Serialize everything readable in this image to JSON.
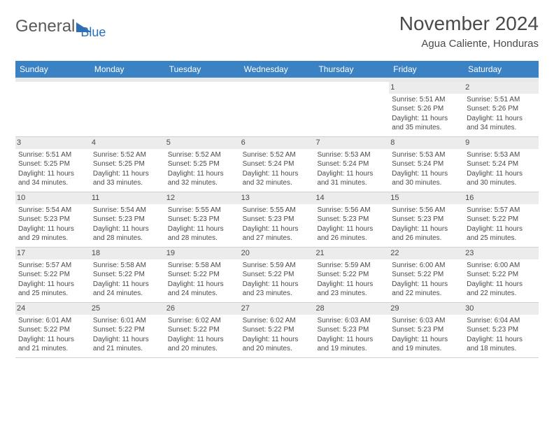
{
  "logo": {
    "part1": "General",
    "part2": "Blue"
  },
  "title": "November 2024",
  "location": "Agua Caliente, Honduras",
  "colors": {
    "header_bg": "#3b82c4",
    "header_text": "#ffffff",
    "daynum_bg": "#ececec",
    "cell_text": "#4a4a4a",
    "spacer_bg": "#e8e8e8"
  },
  "weekdays": [
    "Sunday",
    "Monday",
    "Tuesday",
    "Wednesday",
    "Thursday",
    "Friday",
    "Saturday"
  ],
  "weeks": [
    [
      {
        "n": "",
        "sr": "",
        "ss": "",
        "dl": ""
      },
      {
        "n": "",
        "sr": "",
        "ss": "",
        "dl": ""
      },
      {
        "n": "",
        "sr": "",
        "ss": "",
        "dl": ""
      },
      {
        "n": "",
        "sr": "",
        "ss": "",
        "dl": ""
      },
      {
        "n": "",
        "sr": "",
        "ss": "",
        "dl": ""
      },
      {
        "n": "1",
        "sr": "Sunrise: 5:51 AM",
        "ss": "Sunset: 5:26 PM",
        "dl": "Daylight: 11 hours and 35 minutes."
      },
      {
        "n": "2",
        "sr": "Sunrise: 5:51 AM",
        "ss": "Sunset: 5:26 PM",
        "dl": "Daylight: 11 hours and 34 minutes."
      }
    ],
    [
      {
        "n": "3",
        "sr": "Sunrise: 5:51 AM",
        "ss": "Sunset: 5:25 PM",
        "dl": "Daylight: 11 hours and 34 minutes."
      },
      {
        "n": "4",
        "sr": "Sunrise: 5:52 AM",
        "ss": "Sunset: 5:25 PM",
        "dl": "Daylight: 11 hours and 33 minutes."
      },
      {
        "n": "5",
        "sr": "Sunrise: 5:52 AM",
        "ss": "Sunset: 5:25 PM",
        "dl": "Daylight: 11 hours and 32 minutes."
      },
      {
        "n": "6",
        "sr": "Sunrise: 5:52 AM",
        "ss": "Sunset: 5:24 PM",
        "dl": "Daylight: 11 hours and 32 minutes."
      },
      {
        "n": "7",
        "sr": "Sunrise: 5:53 AM",
        "ss": "Sunset: 5:24 PM",
        "dl": "Daylight: 11 hours and 31 minutes."
      },
      {
        "n": "8",
        "sr": "Sunrise: 5:53 AM",
        "ss": "Sunset: 5:24 PM",
        "dl": "Daylight: 11 hours and 30 minutes."
      },
      {
        "n": "9",
        "sr": "Sunrise: 5:53 AM",
        "ss": "Sunset: 5:24 PM",
        "dl": "Daylight: 11 hours and 30 minutes."
      }
    ],
    [
      {
        "n": "10",
        "sr": "Sunrise: 5:54 AM",
        "ss": "Sunset: 5:23 PM",
        "dl": "Daylight: 11 hours and 29 minutes."
      },
      {
        "n": "11",
        "sr": "Sunrise: 5:54 AM",
        "ss": "Sunset: 5:23 PM",
        "dl": "Daylight: 11 hours and 28 minutes."
      },
      {
        "n": "12",
        "sr": "Sunrise: 5:55 AM",
        "ss": "Sunset: 5:23 PM",
        "dl": "Daylight: 11 hours and 28 minutes."
      },
      {
        "n": "13",
        "sr": "Sunrise: 5:55 AM",
        "ss": "Sunset: 5:23 PM",
        "dl": "Daylight: 11 hours and 27 minutes."
      },
      {
        "n": "14",
        "sr": "Sunrise: 5:56 AM",
        "ss": "Sunset: 5:23 PM",
        "dl": "Daylight: 11 hours and 26 minutes."
      },
      {
        "n": "15",
        "sr": "Sunrise: 5:56 AM",
        "ss": "Sunset: 5:23 PM",
        "dl": "Daylight: 11 hours and 26 minutes."
      },
      {
        "n": "16",
        "sr": "Sunrise: 5:57 AM",
        "ss": "Sunset: 5:22 PM",
        "dl": "Daylight: 11 hours and 25 minutes."
      }
    ],
    [
      {
        "n": "17",
        "sr": "Sunrise: 5:57 AM",
        "ss": "Sunset: 5:22 PM",
        "dl": "Daylight: 11 hours and 25 minutes."
      },
      {
        "n": "18",
        "sr": "Sunrise: 5:58 AM",
        "ss": "Sunset: 5:22 PM",
        "dl": "Daylight: 11 hours and 24 minutes."
      },
      {
        "n": "19",
        "sr": "Sunrise: 5:58 AM",
        "ss": "Sunset: 5:22 PM",
        "dl": "Daylight: 11 hours and 24 minutes."
      },
      {
        "n": "20",
        "sr": "Sunrise: 5:59 AM",
        "ss": "Sunset: 5:22 PM",
        "dl": "Daylight: 11 hours and 23 minutes."
      },
      {
        "n": "21",
        "sr": "Sunrise: 5:59 AM",
        "ss": "Sunset: 5:22 PM",
        "dl": "Daylight: 11 hours and 23 minutes."
      },
      {
        "n": "22",
        "sr": "Sunrise: 6:00 AM",
        "ss": "Sunset: 5:22 PM",
        "dl": "Daylight: 11 hours and 22 minutes."
      },
      {
        "n": "23",
        "sr": "Sunrise: 6:00 AM",
        "ss": "Sunset: 5:22 PM",
        "dl": "Daylight: 11 hours and 22 minutes."
      }
    ],
    [
      {
        "n": "24",
        "sr": "Sunrise: 6:01 AM",
        "ss": "Sunset: 5:22 PM",
        "dl": "Daylight: 11 hours and 21 minutes."
      },
      {
        "n": "25",
        "sr": "Sunrise: 6:01 AM",
        "ss": "Sunset: 5:22 PM",
        "dl": "Daylight: 11 hours and 21 minutes."
      },
      {
        "n": "26",
        "sr": "Sunrise: 6:02 AM",
        "ss": "Sunset: 5:22 PM",
        "dl": "Daylight: 11 hours and 20 minutes."
      },
      {
        "n": "27",
        "sr": "Sunrise: 6:02 AM",
        "ss": "Sunset: 5:22 PM",
        "dl": "Daylight: 11 hours and 20 minutes."
      },
      {
        "n": "28",
        "sr": "Sunrise: 6:03 AM",
        "ss": "Sunset: 5:23 PM",
        "dl": "Daylight: 11 hours and 19 minutes."
      },
      {
        "n": "29",
        "sr": "Sunrise: 6:03 AM",
        "ss": "Sunset: 5:23 PM",
        "dl": "Daylight: 11 hours and 19 minutes."
      },
      {
        "n": "30",
        "sr": "Sunrise: 6:04 AM",
        "ss": "Sunset: 5:23 PM",
        "dl": "Daylight: 11 hours and 18 minutes."
      }
    ]
  ]
}
